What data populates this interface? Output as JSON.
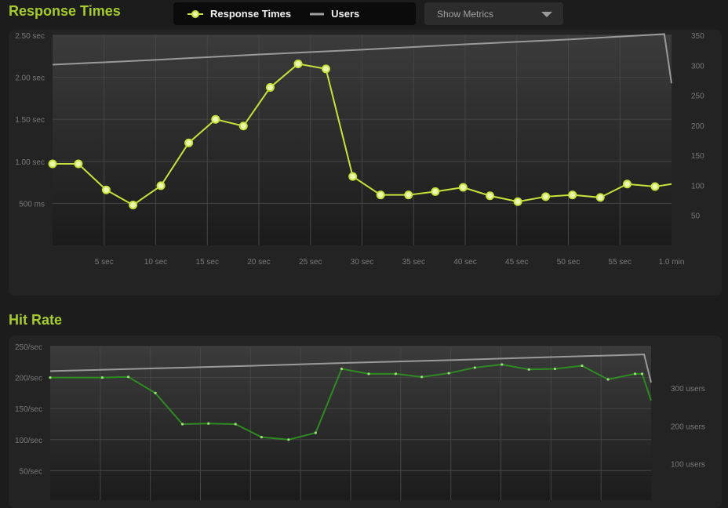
{
  "header": {
    "title": "Response Times",
    "legend": [
      {
        "label": "Response Times",
        "color": "#c6e33c",
        "icon": "line-dot-icon"
      },
      {
        "label": "Users",
        "color": "#a0a0a0",
        "icon": "line-icon"
      }
    ],
    "metrics_dropdown": {
      "label": "Show Metrics",
      "icon": "chevron-down-icon"
    }
  },
  "hit_rate": {
    "title": "Hit Rate"
  },
  "colors": {
    "accent": "#a6cc2c",
    "response_line": "#c6e33c",
    "users_line": "#9a9a9a",
    "hit_line": "#2e8b22"
  },
  "chart_data": [
    {
      "type": "line",
      "title": "Response Times",
      "x_unit": "sec",
      "x_range": [
        0,
        60
      ],
      "x_ticks": [
        {
          "v": 5,
          "label": "5 sec"
        },
        {
          "v": 10,
          "label": "10 sec"
        },
        {
          "v": 15,
          "label": "15 sec"
        },
        {
          "v": 20,
          "label": "20 sec"
        },
        {
          "v": 25,
          "label": "25 sec"
        },
        {
          "v": 30,
          "label": "30 sec"
        },
        {
          "v": 35,
          "label": "35 sec"
        },
        {
          "v": 40,
          "label": "40 sec"
        },
        {
          "v": 45,
          "label": "45 sec"
        },
        {
          "v": 50,
          "label": "50 sec"
        },
        {
          "v": 55,
          "label": "55 sec"
        },
        {
          "v": 60,
          "label": "1.0 min"
        }
      ],
      "y_left_range": [
        0,
        2.5
      ],
      "y_left_ticks": [
        {
          "v": 0.5,
          "label": "500 ms"
        },
        {
          "v": 1.0,
          "label": "1.00 sec"
        },
        {
          "v": 1.5,
          "label": "1.50 sec"
        },
        {
          "v": 2.0,
          "label": "2.00 sec"
        },
        {
          "v": 2.5,
          "label": "2.50 sec"
        }
      ],
      "y_right_range": [
        0,
        350
      ],
      "y_right_ticks": [
        {
          "v": 50,
          "label": "50"
        },
        {
          "v": 100,
          "label": "100"
        },
        {
          "v": 150,
          "label": "150"
        },
        {
          "v": 200,
          "label": "200"
        },
        {
          "v": 250,
          "label": "250"
        },
        {
          "v": 300,
          "label": "300"
        },
        {
          "v": 350,
          "label": "350"
        }
      ],
      "grid": true,
      "series": [
        {
          "name": "Response Times",
          "axis": "left",
          "markers": true,
          "x": [
            0,
            2.5,
            5.2,
            7.8,
            10.5,
            13.2,
            15.8,
            18.5,
            21.1,
            23.8,
            26.5,
            29.1,
            31.8,
            34.5,
            37.1,
            39.8,
            42.4,
            45.1,
            47.8,
            50.4,
            53.1,
            55.7,
            58.4,
            60
          ],
          "values": [
            0.97,
            0.97,
            0.66,
            0.48,
            0.71,
            1.22,
            1.5,
            1.42,
            1.88,
            2.16,
            2.1,
            0.82,
            0.6,
            0.6,
            0.64,
            0.69,
            0.59,
            0.52,
            0.58,
            0.6,
            0.57,
            0.73,
            0.7,
            0.73
          ]
        },
        {
          "name": "Users",
          "axis": "right",
          "markers": false,
          "x": [
            0,
            10,
            20,
            30,
            40,
            50,
            59.3,
            60
          ],
          "values": [
            301,
            309,
            318,
            326,
            335,
            343,
            352,
            270
          ]
        }
      ]
    },
    {
      "type": "line",
      "title": "Hit Rate",
      "x_range": [
        0,
        60
      ],
      "y_left_range": [
        0,
        250
      ],
      "y_left_ticks": [
        {
          "v": 50,
          "label": "50/sec"
        },
        {
          "v": 100,
          "label": "100/sec"
        },
        {
          "v": 150,
          "label": "150/sec"
        },
        {
          "v": 200,
          "label": "200/sec"
        },
        {
          "v": 250,
          "label": "250/sec"
        }
      ],
      "y_right_range": [
        0,
        410
      ],
      "y_right_ticks": [
        {
          "v": 100,
          "label": "100 users"
        },
        {
          "v": 200,
          "label": "200 users"
        },
        {
          "v": 300,
          "label": "300 users"
        }
      ],
      "grid": true,
      "series": [
        {
          "name": "Hit Rate",
          "axis": "left",
          "markers": true,
          "x": [
            0,
            5.2,
            7.8,
            10.5,
            13.2,
            15.8,
            18.5,
            21.1,
            23.8,
            26.5,
            29.1,
            31.8,
            34.5,
            37.1,
            39.8,
            42.4,
            45.1,
            47.8,
            50.4,
            53.1,
            55.7,
            58.4,
            59.1,
            60
          ],
          "values": [
            200,
            200,
            201,
            175,
            125,
            126,
            125,
            104,
            100,
            111,
            214,
            206,
            206,
            201,
            207,
            216,
            221,
            213,
            214,
            219,
            197,
            206,
            206,
            163
          ]
        },
        {
          "name": "Users",
          "axis": "right",
          "markers": false,
          "x": [
            0,
            10,
            20,
            30,
            40,
            50,
            59.3,
            60
          ],
          "values": [
            345,
            352,
            359,
            367,
            374,
            382,
            389,
            315
          ]
        }
      ]
    }
  ]
}
